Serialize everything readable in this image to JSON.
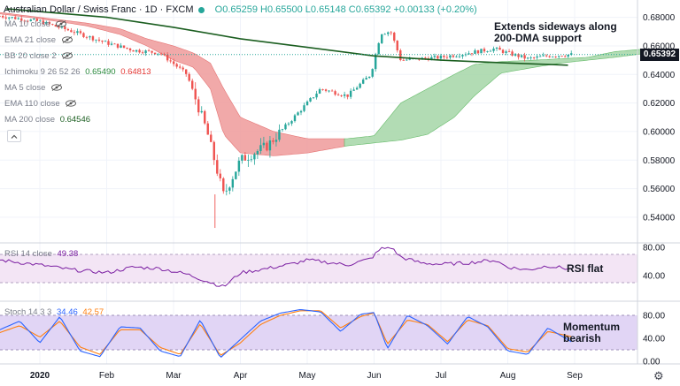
{
  "header": {
    "symbol": "Australian Dollar / Swiss Franc · 1D · FXCM",
    "ohlc": "O0.65259 H0.65500 L0.65148 C0.65392 +0.00133 (+0.20%)"
  },
  "legend": {
    "ma10": "MA 10 close",
    "ema21": "EMA 21 close",
    "bb20": "BB 20 close 2",
    "ichimoku_label": "Ichimoku 9 26 52 26",
    "ichimoku_v1": "0.65490",
    "ichimoku_v2": "0.64813",
    "ma5": "MA 5 close",
    "ema110": "EMA 110 close",
    "ma200_label": "MA 200 close",
    "ma200_value": "0.64546",
    "rsi_label": "RSI 14 close",
    "rsi_value": "49.38",
    "stoch_label": "Stoch 14 3 3",
    "stoch_k": "34.46",
    "stoch_d": "42.57"
  },
  "annotations": {
    "dma_line1": "Extends sideways along",
    "dma_line2": "200-DMA support",
    "rsi": "RSI flat",
    "momentum_line1": "Momentum",
    "momentum_line2": "bearish"
  },
  "last_price": "0.65392",
  "colors": {
    "up": "#26a69a",
    "down": "#ef5350",
    "ma200": "#1b5e20",
    "cloud_bull": "#a5d6a7",
    "cloud_bear": "#ef9a9a",
    "rsi_line": "#7b1fa2",
    "stoch_k": "#2962ff",
    "stoch_d": "#ff7f0e"
  },
  "chart_data": [
    {
      "type": "candlestick",
      "title": "Australian Dollar / Swiss Franc · 1D · FXCM",
      "x_tick_labels": [
        "2020",
        "Feb",
        "Mar",
        "Apr",
        "May",
        "Jun",
        "Jul",
        "Aug",
        "Sep"
      ],
      "y_tick_labels": [
        "0.68000",
        "0.66000",
        "0.64000",
        "0.62000",
        "0.60000",
        "0.58000",
        "0.56000",
        "0.54000"
      ],
      "ylim": [
        0.532,
        0.688
      ],
      "last_price": 0.65392,
      "x_months": [
        0,
        1,
        2,
        3,
        4,
        5,
        6,
        7,
        8
      ],
      "ma200_x": [
        -0.5,
        1,
        2,
        3,
        4,
        5,
        6,
        7,
        7.9
      ],
      "ma200_values": [
        0.686,
        0.68,
        0.673,
        0.665,
        0.659,
        0.653,
        0.65,
        0.648,
        0.6465
      ],
      "cloud_x": [
        -0.7,
        0.0,
        0.7,
        1.2,
        1.6,
        2.0,
        2.3,
        2.55,
        2.75,
        3.0,
        3.5,
        4.0,
        4.6,
        5.0,
        5.4,
        5.8,
        6.2,
        6.5,
        6.9,
        7.4,
        7.8,
        8.2,
        8.6,
        9.1
      ],
      "cloud_a": [
        0.684,
        0.68,
        0.676,
        0.672,
        0.665,
        0.66,
        0.655,
        0.648,
        0.63,
        0.61,
        0.6,
        0.595,
        0.595,
        0.597,
        0.62,
        0.63,
        0.64,
        0.647,
        0.649,
        0.65,
        0.651,
        0.652,
        0.656,
        0.658
      ],
      "cloud_b": [
        0.683,
        0.679,
        0.674,
        0.668,
        0.66,
        0.65,
        0.645,
        0.63,
        0.598,
        0.585,
        0.583,
        0.585,
        0.59,
        0.592,
        0.594,
        0.598,
        0.61,
        0.625,
        0.641,
        0.645,
        0.648,
        0.65,
        0.652,
        0.655
      ],
      "price_path_x": [
        -0.6,
        0.0,
        0.5,
        1.0,
        1.4,
        1.8,
        2.2,
        2.5,
        2.75,
        3.0,
        3.4,
        3.8,
        4.0,
        4.2,
        4.6,
        4.95,
        5.1,
        5.25,
        5.4,
        5.7,
        6.0,
        6.4,
        6.8,
        7.0,
        7.3,
        7.6,
        7.95
      ],
      "price_path_y": [
        0.681,
        0.677,
        0.67,
        0.662,
        0.657,
        0.655,
        0.64,
        0.6,
        0.555,
        0.58,
        0.59,
        0.61,
        0.62,
        0.63,
        0.625,
        0.64,
        0.669,
        0.67,
        0.65,
        0.651,
        0.652,
        0.655,
        0.658,
        0.655,
        0.651,
        0.653,
        0.6539
      ],
      "wicks": [
        {
          "x": 2.62,
          "low": 0.5325
        }
      ]
    },
    {
      "type": "line",
      "title": "RSI 14 close",
      "value": 49.38,
      "y_tick_labels": [
        "80.00",
        "40.00"
      ],
      "ylim": [
        30,
        90
      ],
      "band": [
        30,
        70
      ],
      "x": [
        -0.6,
        0.0,
        0.5,
        1.0,
        1.4,
        1.8,
        2.2,
        2.5,
        2.75,
        3.0,
        3.4,
        3.8,
        4.0,
        4.2,
        4.6,
        4.95,
        5.1,
        5.25,
        5.4,
        5.7,
        6.0,
        6.4,
        6.8,
        7.0,
        7.3,
        7.6,
        7.95
      ],
      "values": [
        62,
        55,
        48,
        44,
        52,
        50,
        42,
        32,
        24,
        44,
        50,
        57,
        62,
        60,
        55,
        64,
        78,
        80,
        66,
        58,
        56,
        58,
        62,
        52,
        48,
        54,
        49
      ]
    },
    {
      "type": "line",
      "title": "Stoch 14 3 3",
      "k_value": 34.46,
      "d_value": 42.57,
      "y_tick_labels": [
        "80.00",
        "40.00",
        "0.00"
      ],
      "ylim": [
        -8,
        100
      ],
      "band": [
        20,
        80
      ],
      "x": [
        -0.6,
        -0.3,
        0.0,
        0.3,
        0.6,
        0.9,
        1.2,
        1.5,
        1.8,
        2.1,
        2.4,
        2.7,
        3.0,
        3.3,
        3.6,
        3.9,
        4.2,
        4.5,
        4.8,
        5.0,
        5.2,
        5.5,
        5.8,
        6.1,
        6.4,
        6.7,
        7.0,
        7.3,
        7.6,
        7.95
      ],
      "k": [
        55,
        70,
        32,
        78,
        18,
        8,
        60,
        58,
        18,
        8,
        72,
        6,
        38,
        70,
        84,
        90,
        86,
        52,
        82,
        85,
        22,
        80,
        62,
        30,
        78,
        60,
        18,
        12,
        58,
        34
      ],
      "d": [
        50,
        62,
        42,
        70,
        25,
        12,
        55,
        55,
        24,
        12,
        65,
        10,
        32,
        64,
        80,
        88,
        88,
        58,
        78,
        84,
        30,
        72,
        64,
        34,
        72,
        62,
        22,
        16,
        52,
        43
      ]
    }
  ]
}
